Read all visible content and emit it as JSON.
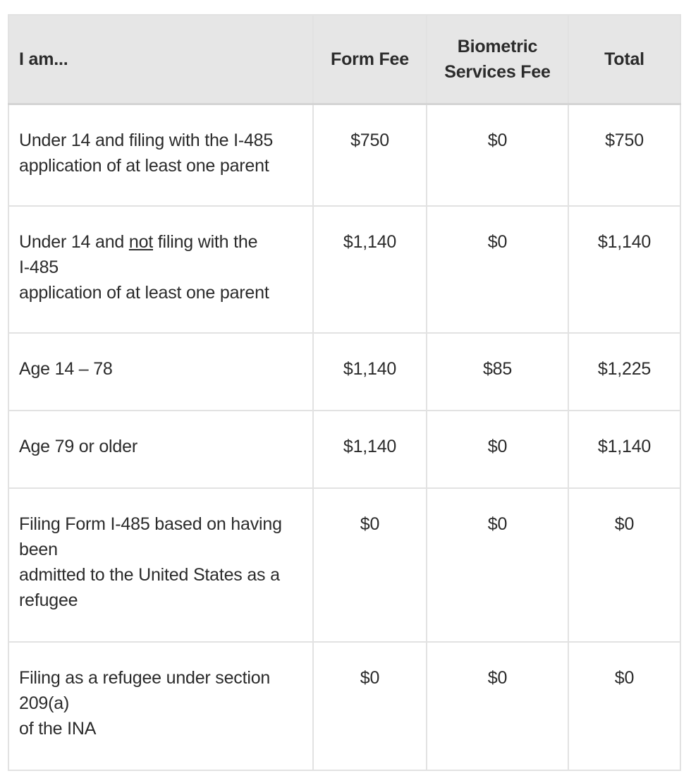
{
  "table": {
    "headers": {
      "col1": "I am...",
      "col2": "Form Fee",
      "col3_line1": "Biometric",
      "col3_line2": "Services Fee",
      "col4": "Total"
    },
    "rows": [
      {
        "desc_lines": [
          "Under 14 and filing with the I-485",
          "application of at least one parent"
        ],
        "form_fee": "$750",
        "biometric_fee": "$0",
        "total": "$750"
      },
      {
        "desc_line1_pre": "Under 14 and ",
        "desc_line1_underlined": "not",
        "desc_line1_post": " filing with the",
        "desc_lines": [
          "I-485",
          "application of at least one parent"
        ],
        "form_fee": "$1,140",
        "biometric_fee": "$0",
        "total": "$1,140"
      },
      {
        "desc_lines": [
          "Age 14 – 78"
        ],
        "form_fee": "$1,140",
        "biometric_fee": "$85",
        "total": "$1,225"
      },
      {
        "desc_lines": [
          "Age 79 or older"
        ],
        "form_fee": "$1,140",
        "biometric_fee": "$0",
        "total": "$1,140"
      },
      {
        "desc_lines": [
          "Filing Form I-485 based on having",
          "been",
          "admitted to the United States as a",
          "refugee"
        ],
        "form_fee": "$0",
        "biometric_fee": "$0",
        "total": "$0"
      },
      {
        "desc_lines": [
          "Filing as a refugee under section",
          "209(a)",
          "of the INA"
        ],
        "form_fee": "$0",
        "biometric_fee": "$0",
        "total": "$0"
      }
    ]
  }
}
